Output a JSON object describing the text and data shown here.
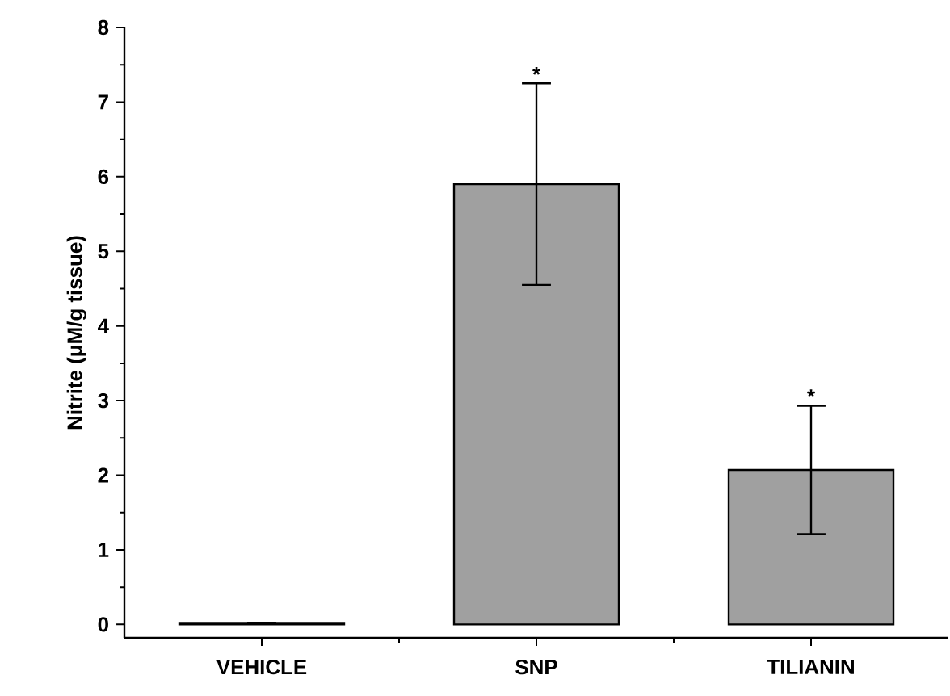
{
  "chart_data": {
    "type": "bar",
    "ylabel": "Nitrite (μM/g tissue)",
    "categories": [
      "VEHICLE",
      "SNP",
      "TILIANIN"
    ],
    "values": [
      0.02,
      5.9,
      2.07
    ],
    "errors": [
      null,
      1.35,
      0.86
    ],
    "color": "#a0a0a0",
    "ylim": [
      -0.18,
      8
    ],
    "yticks": [
      0,
      1,
      2,
      3,
      4,
      5,
      6,
      7,
      8
    ],
    "annotations": [
      "*",
      "*"
    ]
  }
}
